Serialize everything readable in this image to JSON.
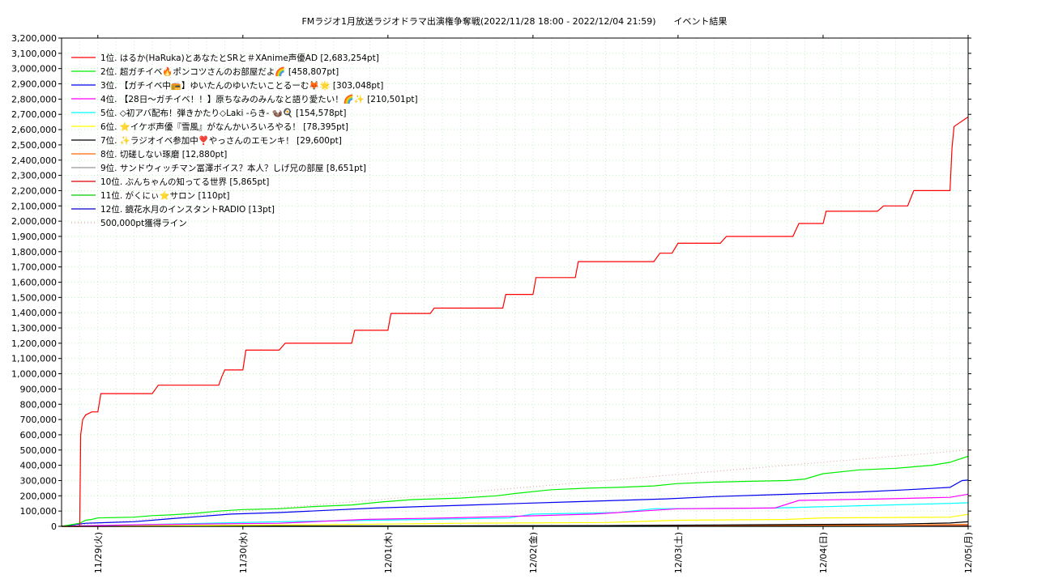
{
  "chart_data": {
    "type": "line",
    "title": "FMラジオ1月放送ラジオドラマ出演権争奪戦(2022/11/28 18:00 - 2022/12/04 21:59)　　イベント結果",
    "xlabel": "",
    "ylabel": "",
    "xlim": [
      "2022-11-28 18:00",
      "2022-12-05 00:00"
    ],
    "ylim": [
      0,
      3200000
    ],
    "y_ticks": [
      0,
      100000,
      200000,
      300000,
      400000,
      500000,
      600000,
      700000,
      800000,
      900000,
      1000000,
      1100000,
      1200000,
      1300000,
      1400000,
      1500000,
      1600000,
      1700000,
      1800000,
      1900000,
      2000000,
      2100000,
      2200000,
      2300000,
      2400000,
      2500000,
      2600000,
      2700000,
      2800000,
      2900000,
      3000000,
      3100000,
      3200000
    ],
    "y_tick_labels": [
      "0",
      "100,000",
      "200,000",
      "300,000",
      "400,000",
      "500,000",
      "600,000",
      "700,000",
      "800,000",
      "900,000",
      "1,000,000",
      "1,100,000",
      "1,200,000",
      "1,300,000",
      "1,400,000",
      "1,500,000",
      "1,600,000",
      "1,700,000",
      "1,800,000",
      "1,900,000",
      "2,000,000",
      "2,100,000",
      "2,200,000",
      "2,300,000",
      "2,400,000",
      "2,500,000",
      "2,600,000",
      "2,700,000",
      "2,800,000",
      "2,900,000",
      "3,000,000",
      "3,100,000",
      "3,200,000"
    ],
    "x_ticks": [
      "2022-11-29 00:00",
      "2022-11-30 00:00",
      "2022-12-01 00:00",
      "2022-12-02 00:00",
      "2022-12-03 00:00",
      "2022-12-04 00:00",
      "2022-12-05 00:00"
    ],
    "x_tick_labels": [
      "11/29(火)",
      "11/30(水)",
      "12/01(木)",
      "12/02(金)",
      "12/03(土)",
      "12/04(日)",
      "12/05(月)"
    ],
    "grid": true,
    "legend_position": "top-left",
    "series": [
      {
        "name": "1位. はるか(HaRuka)とあなたとSRと＃XAnime声優AD [2,683,254pt]",
        "color": "#ff0000",
        "style": "solid",
        "x": [
          "2022-11-28 18:00",
          "2022-11-28 21:00",
          "2022-11-28 21:10",
          "2022-11-28 21:30",
          "2022-11-28 22:00",
          "2022-11-28 23:00",
          "2022-11-29 00:00",
          "2022-11-29 00:30",
          "2022-11-29 01:00",
          "2022-11-29 09:00",
          "2022-11-29 10:00",
          "2022-11-29 20:00",
          "2022-11-29 20:30",
          "2022-11-29 21:00",
          "2022-11-30 00:00",
          "2022-11-30 00:30",
          "2022-11-30 06:00",
          "2022-11-30 07:00",
          "2022-11-30 18:00",
          "2022-11-30 18:30",
          "2022-11-30 20:00",
          "2022-12-01 00:00",
          "2022-12-01 00:30",
          "2022-12-01 07:00",
          "2022-12-01 07:40",
          "2022-12-01 19:00",
          "2022-12-01 19:30",
          "2022-12-01 20:00",
          "2022-12-02 00:00",
          "2022-12-02 00:30",
          "2022-12-02 07:00",
          "2022-12-02 07:30",
          "2022-12-02 20:00",
          "2022-12-02 21:00",
          "2022-12-02 23:00",
          "2022-12-03 00:00",
          "2022-12-03 07:00",
          "2022-12-03 08:00",
          "2022-12-03 19:00",
          "2022-12-03 20:00",
          "2022-12-04 00:00",
          "2022-12-04 00:30",
          "2022-12-04 09:00",
          "2022-12-04 10:00",
          "2022-12-04 14:00",
          "2022-12-04 15:00",
          "2022-12-04 21:00",
          "2022-12-04 21:20",
          "2022-12-04 21:40",
          "2022-12-05 00:00"
        ],
        "y": [
          0,
          0,
          600000,
          700000,
          730000,
          750000,
          750000,
          870000,
          870000,
          870000,
          925000,
          925000,
          980000,
          1025000,
          1025000,
          1155000,
          1155000,
          1200000,
          1200000,
          1285000,
          1285000,
          1285000,
          1395000,
          1395000,
          1430000,
          1430000,
          1520000,
          1520000,
          1520000,
          1630000,
          1630000,
          1735000,
          1735000,
          1790000,
          1790000,
          1855000,
          1855000,
          1900000,
          1900000,
          1985000,
          1985000,
          2065000,
          2065000,
          2100000,
          2100000,
          2200000,
          2200000,
          2480000,
          2620000,
          2683254
        ]
      },
      {
        "name": "2位. 超ガチイベ🔥ポンコツさんのお部屋だよ🌈 [458,807pt]",
        "color": "#00ee00",
        "style": "solid",
        "x": [
          "2022-11-28 18:00",
          "2022-11-28 21:00",
          "2022-11-28 22:00",
          "2022-11-28 23:00",
          "2022-11-29 00:00",
          "2022-11-29 06:00",
          "2022-11-29 09:00",
          "2022-11-29 12:00",
          "2022-11-29 16:00",
          "2022-11-29 20:00",
          "2022-11-30 00:00",
          "2022-11-30 06:00",
          "2022-11-30 12:00",
          "2022-11-30 18:00",
          "2022-11-30 23:00",
          "2022-12-01 04:00",
          "2022-12-01 12:00",
          "2022-12-01 18:00",
          "2022-12-01 21:00",
          "2022-12-02 03:00",
          "2022-12-02 09:00",
          "2022-12-02 14:00",
          "2022-12-02 20:00",
          "2022-12-03 00:00",
          "2022-12-03 06:00",
          "2022-12-03 12:00",
          "2022-12-03 18:00",
          "2022-12-03 21:00",
          "2022-12-04 00:00",
          "2022-12-04 06:00",
          "2022-12-04 12:00",
          "2022-12-04 18:00",
          "2022-12-04 21:00",
          "2022-12-05 00:00"
        ],
        "y": [
          0,
          20000,
          40000,
          45000,
          55000,
          60000,
          70000,
          75000,
          85000,
          100000,
          110000,
          115000,
          130000,
          140000,
          160000,
          175000,
          185000,
          200000,
          215000,
          240000,
          250000,
          255000,
          265000,
          280000,
          290000,
          295000,
          300000,
          310000,
          345000,
          370000,
          380000,
          400000,
          420000,
          458807
        ]
      },
      {
        "name": "3位. 【ガチイベ中📻】ゆいたんのゆいたいことるーむ🦊🌟 [303,048pt]",
        "color": "#0000ee",
        "style": "solid",
        "x": [
          "2022-11-28 18:00",
          "2022-11-28 22:00",
          "2022-11-29 06:00",
          "2022-11-29 12:00",
          "2022-11-29 22:00",
          "2022-11-30 06:00",
          "2022-11-30 14:00",
          "2022-11-30 22:00",
          "2022-12-01 06:00",
          "2022-12-01 14:00",
          "2022-12-01 22:00",
          "2022-12-02 06:00",
          "2022-12-02 14:00",
          "2022-12-02 22:00",
          "2022-12-03 06:00",
          "2022-12-03 14:00",
          "2022-12-03 22:00",
          "2022-12-04 06:00",
          "2022-12-04 14:00",
          "2022-12-04 21:00",
          "2022-12-04 23:00",
          "2022-12-05 00:00"
        ],
        "y": [
          0,
          20000,
          30000,
          50000,
          80000,
          90000,
          105000,
          120000,
          130000,
          140000,
          150000,
          160000,
          170000,
          180000,
          195000,
          205000,
          215000,
          225000,
          240000,
          255000,
          300000,
          303048
        ]
      },
      {
        "name": "4位. 【28日〜ガチイベ！！】原ちなみのみんなと語り愛たい！🌈✨ [210,501pt]",
        "color": "#ff00ff",
        "style": "solid",
        "x": [
          "2022-11-28 18:00",
          "2022-11-29 06:00",
          "2022-11-30 06:00",
          "2022-11-30 20:00",
          "2022-12-01 10:00",
          "2022-12-01 20:00",
          "2022-12-02 10:00",
          "2022-12-02 20:00",
          "2022-12-03 00:00",
          "2022-12-03 16:00",
          "2022-12-03 20:00",
          "2022-12-04 10:00",
          "2022-12-04 21:00",
          "2022-12-05 00:00"
        ],
        "y": [
          0,
          10000,
          20000,
          45000,
          55000,
          65000,
          80000,
          105000,
          115000,
          120000,
          170000,
          180000,
          190000,
          210501
        ]
      },
      {
        "name": "5位. ◇初アバ配布！弾きかたり◇Laki -らき- 🦦🍳 [154,578pt]",
        "color": "#00ffff",
        "style": "solid",
        "x": [
          "2022-11-28 18:00",
          "2022-11-29 06:00",
          "2022-11-30 06:00",
          "2022-12-01 06:00",
          "2022-12-01 20:00",
          "2022-12-02 00:00",
          "2022-12-02 14:00",
          "2022-12-02 20:00",
          "2022-12-03 16:00",
          "2022-12-04 06:00",
          "2022-12-04 21:00",
          "2022-12-05 00:00"
        ],
        "y": [
          0,
          10000,
          30000,
          45000,
          55000,
          80000,
          90000,
          115000,
          120000,
          135000,
          150000,
          154578
        ]
      },
      {
        "name": "6位. ⭐イケボ声優『雪風』がなんかいろいろやる！ [78,395pt]",
        "color": "#ffff00",
        "style": "solid",
        "x": [
          "2022-11-28 18:00",
          "2022-11-29 12:00",
          "2022-11-30 12:00",
          "2022-12-01 12:00",
          "2022-12-02 12:00",
          "2022-12-03 00:00",
          "2022-12-03 18:00",
          "2022-12-04 00:00",
          "2022-12-04 21:00",
          "2022-12-05 00:00"
        ],
        "y": [
          0,
          5000,
          10000,
          20000,
          25000,
          40000,
          45000,
          55000,
          60000,
          78395
        ]
      },
      {
        "name": "7位. ✨ラジオイベ参加中❣️やっさんのエモンキ！ [29,600pt]",
        "color": "#000000",
        "style": "solid",
        "x": [
          "2022-11-28 18:00",
          "2022-11-30 12:00",
          "2022-12-02 12:00",
          "2022-12-03 12:00",
          "2022-12-04 12:00",
          "2022-12-04 21:00",
          "2022-12-05 00:00"
        ],
        "y": [
          0,
          2000,
          5000,
          10000,
          15000,
          22000,
          29600
        ]
      },
      {
        "name": "8位. 切磋しない琢磨 [12,880pt]",
        "color": "#ff6600",
        "style": "solid",
        "x": [
          "2022-11-28 18:00",
          "2022-11-30 12:00",
          "2022-12-02 12:00",
          "2022-12-04 12:00",
          "2022-12-05 00:00"
        ],
        "y": [
          0,
          1000,
          3000,
          8000,
          12880
        ]
      },
      {
        "name": "9位. サンドウィッチマン冨澤ボイス？本人？しげ兄の部屋 [8,651pt]",
        "color": "#999999",
        "style": "solid",
        "x": [
          "2022-11-28 18:00",
          "2022-11-30 12:00",
          "2022-12-02 12:00",
          "2022-12-04 12:00",
          "2022-12-05 00:00"
        ],
        "y": [
          0,
          1000,
          2500,
          6000,
          8651
        ]
      },
      {
        "name": "10位. ぶんちゃんの知ってる世界 [5,865pt]",
        "color": "#dd0000",
        "style": "solid",
        "x": [
          "2022-11-28 18:00",
          "2022-11-30 12:00",
          "2022-12-02 12:00",
          "2022-12-04 12:00",
          "2022-12-05 00:00"
        ],
        "y": [
          0,
          1000,
          2000,
          4000,
          5865
        ]
      },
      {
        "name": "11位. がくにぃ⭐サロン [110pt]",
        "color": "#00cc00",
        "style": "solid",
        "x": [
          "2022-11-28 18:00",
          "2022-12-05 00:00"
        ],
        "y": [
          0,
          110
        ]
      },
      {
        "name": "12位. 鏡花水月のインスタントRADIO [13pt]",
        "color": "#0000cc",
        "style": "solid",
        "x": [
          "2022-11-28 18:00",
          "2022-12-05 00:00"
        ],
        "y": [
          0,
          13
        ]
      },
      {
        "name": "500,000pt獲得ライン",
        "color": "#e0a0a0",
        "style": "dotted",
        "x": [
          "2022-11-28 18:00",
          "2022-12-05 00:00"
        ],
        "y": [
          0,
          500000
        ]
      }
    ]
  }
}
